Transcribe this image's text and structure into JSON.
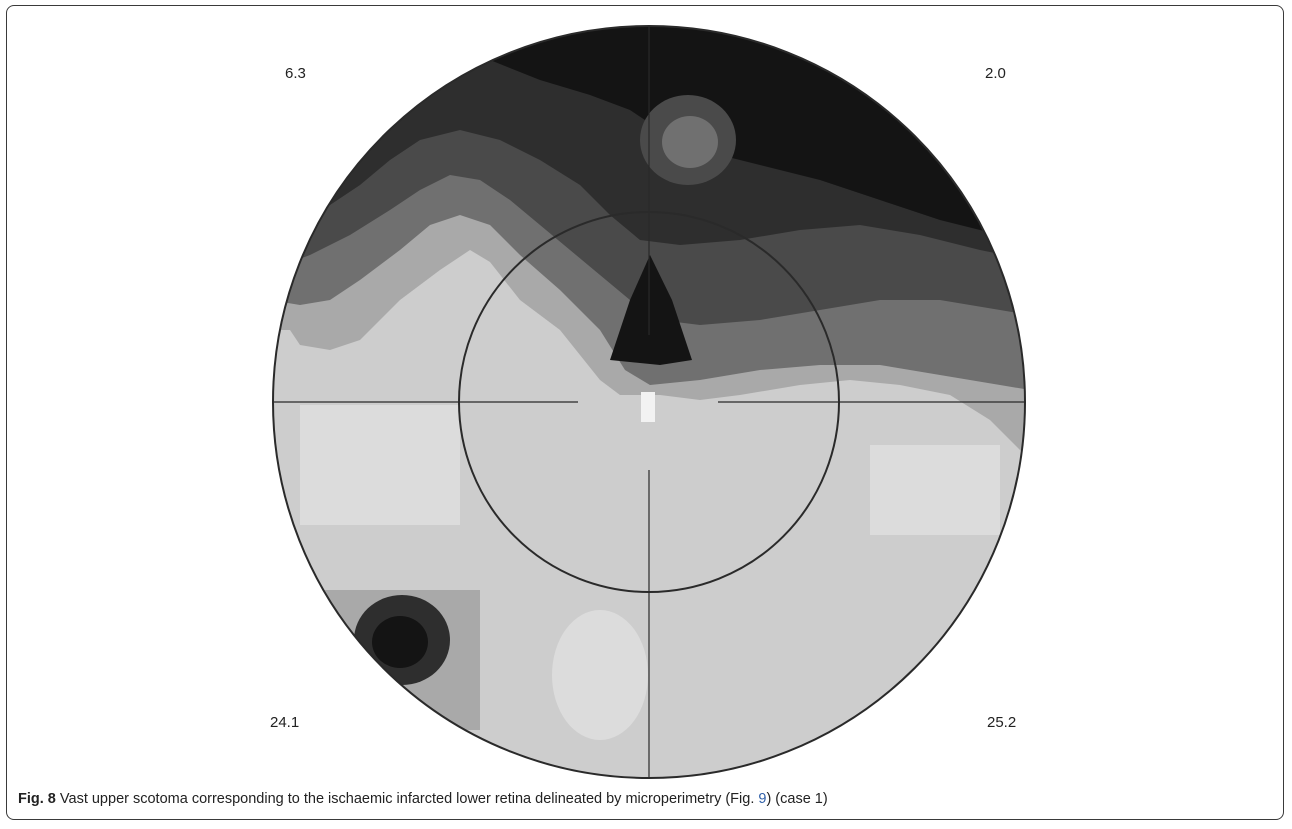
{
  "figure": {
    "quadrant_values": {
      "upper_left": "6.3",
      "upper_right": "2.0",
      "lower_left": "24.1",
      "lower_right": "25.2"
    },
    "colors": {
      "deep_scotoma": "#141414",
      "dark": "#2e2e2e",
      "mid_dark": "#4a4a4a",
      "mid": "#707070",
      "light_mid": "#a9a9a9",
      "light": "#cdcdcd",
      "lightest": "#dcdcdc",
      "outline": "#2a2a2a"
    }
  },
  "caption": {
    "label": "Fig. 8",
    "text_before": " Vast upper scotoma corresponding to the ischaemic infarcted lower retina delineated by microperimetry (Fig. ",
    "xref": "9",
    "text_after": ") (case 1)"
  }
}
